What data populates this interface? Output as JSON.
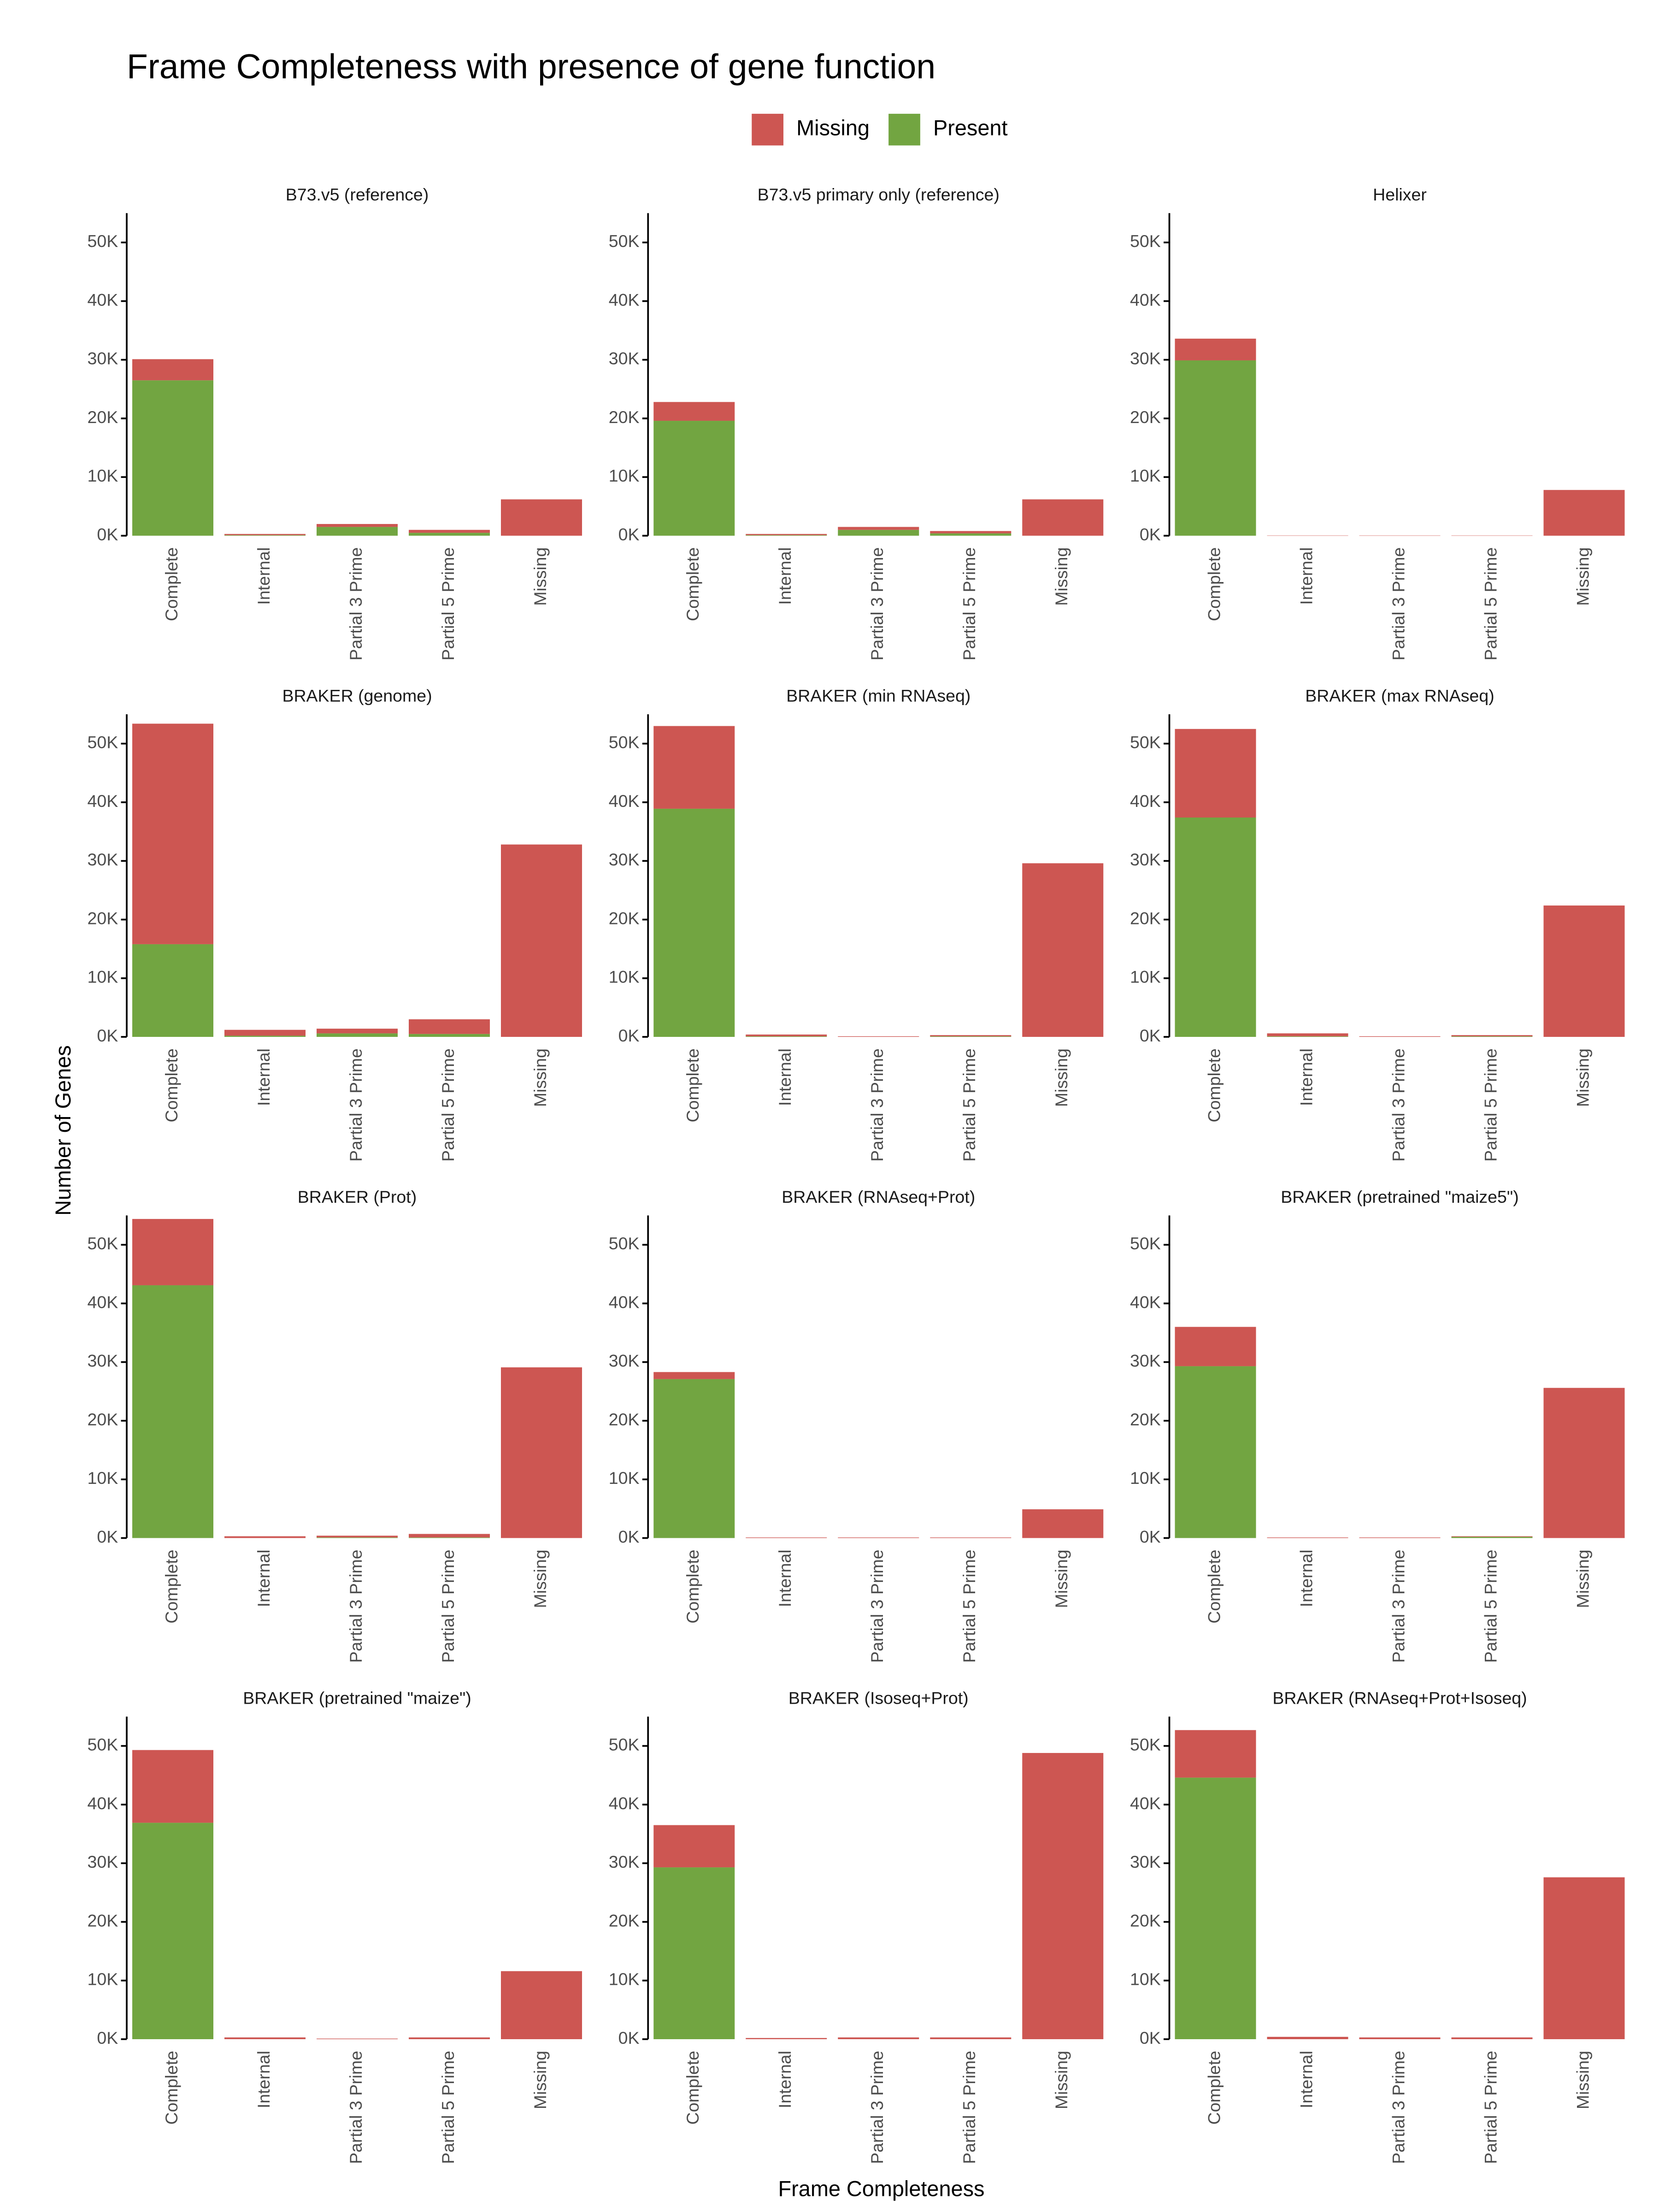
{
  "figure": {
    "title": "Frame Completeness with presence of gene function",
    "xlabel": "Frame Completeness",
    "ylabel": "Number of Genes"
  },
  "chart_data": [
    {
      "type": "bar",
      "stacked": true,
      "title": "B73.v5 (reference)",
      "categories": [
        "Complete",
        "Internal",
        "Partial 3 Prime",
        "Partial 5 Prime",
        "Missing"
      ],
      "series": [
        {
          "name": "Missing",
          "color": "#CD5652",
          "values": [
            3600,
            200,
            500,
            500,
            6200
          ]
        },
        {
          "name": "Present",
          "color": "#72A541",
          "values": [
            26500,
            100,
            1500,
            500,
            0
          ]
        }
      ],
      "ylim": [
        0,
        55000
      ],
      "yticks": [
        {
          "value": 0,
          "label": "0K"
        },
        {
          "value": 10000,
          "label": "10K"
        },
        {
          "value": 20000,
          "label": "20K"
        },
        {
          "value": 30000,
          "label": "30K"
        },
        {
          "value": 40000,
          "label": "40K"
        },
        {
          "value": 50000,
          "label": "50K"
        }
      ]
    },
    {
      "type": "bar",
      "stacked": true,
      "title": "B73.v5 primary only (reference)",
      "categories": [
        "Complete",
        "Internal",
        "Partial 3 Prime",
        "Partial 5 Prime",
        "Missing"
      ],
      "series": [
        {
          "name": "Missing",
          "color": "#CD5652",
          "values": [
            3200,
            200,
            500,
            400,
            6200
          ]
        },
        {
          "name": "Present",
          "color": "#72A541",
          "values": [
            19600,
            100,
            1000,
            400,
            0
          ]
        }
      ],
      "ylim": [
        0,
        55000
      ],
      "yticks": [
        {
          "value": 0,
          "label": "0K"
        },
        {
          "value": 10000,
          "label": "10K"
        },
        {
          "value": 20000,
          "label": "20K"
        },
        {
          "value": 30000,
          "label": "30K"
        },
        {
          "value": 40000,
          "label": "40K"
        },
        {
          "value": 50000,
          "label": "50K"
        }
      ]
    },
    {
      "type": "bar",
      "stacked": true,
      "title": "Helixer",
      "categories": [
        "Complete",
        "Internal",
        "Partial 3 Prime",
        "Partial 5 Prime",
        "Missing"
      ],
      "series": [
        {
          "name": "Missing",
          "color": "#CD5652",
          "values": [
            3700,
            50,
            50,
            50,
            7800
          ]
        },
        {
          "name": "Present",
          "color": "#72A541",
          "values": [
            29900,
            0,
            0,
            0,
            0
          ]
        }
      ],
      "ylim": [
        0,
        55000
      ],
      "yticks": [
        {
          "value": 0,
          "label": "0K"
        },
        {
          "value": 10000,
          "label": "10K"
        },
        {
          "value": 20000,
          "label": "20K"
        },
        {
          "value": 30000,
          "label": "30K"
        },
        {
          "value": 40000,
          "label": "40K"
        },
        {
          "value": 50000,
          "label": "50K"
        }
      ]
    },
    {
      "type": "bar",
      "stacked": true,
      "title": "BRAKER (genome)",
      "categories": [
        "Complete",
        "Internal",
        "Partial 3 Prime",
        "Partial 5 Prime",
        "Missing"
      ],
      "series": [
        {
          "name": "Missing",
          "color": "#CD5652",
          "values": [
            37600,
            1000,
            800,
            2500,
            32800
          ]
        },
        {
          "name": "Present",
          "color": "#72A541",
          "values": [
            15800,
            200,
            600,
            500,
            0
          ]
        }
      ],
      "ylim": [
        0,
        55000
      ],
      "yticks": [
        {
          "value": 0,
          "label": "0K"
        },
        {
          "value": 10000,
          "label": "10K"
        },
        {
          "value": 20000,
          "label": "20K"
        },
        {
          "value": 30000,
          "label": "30K"
        },
        {
          "value": 40000,
          "label": "40K"
        },
        {
          "value": 50000,
          "label": "50K"
        }
      ]
    },
    {
      "type": "bar",
      "stacked": true,
      "title": "BRAKER (min RNAseq)",
      "categories": [
        "Complete",
        "Internal",
        "Partial 3 Prime",
        "Partial 5 Prime",
        "Missing"
      ],
      "series": [
        {
          "name": "Missing",
          "color": "#CD5652",
          "values": [
            14100,
            300,
            100,
            200,
            29600
          ]
        },
        {
          "name": "Present",
          "color": "#72A541",
          "values": [
            38900,
            100,
            0,
            100,
            0
          ]
        }
      ],
      "ylim": [
        0,
        55000
      ],
      "yticks": [
        {
          "value": 0,
          "label": "0K"
        },
        {
          "value": 10000,
          "label": "10K"
        },
        {
          "value": 20000,
          "label": "20K"
        },
        {
          "value": 30000,
          "label": "30K"
        },
        {
          "value": 40000,
          "label": "40K"
        },
        {
          "value": 50000,
          "label": "50K"
        }
      ]
    },
    {
      "type": "bar",
      "stacked": true,
      "title": "BRAKER (max RNAseq)",
      "categories": [
        "Complete",
        "Internal",
        "Partial 3 Prime",
        "Partial 5 Prime",
        "Missing"
      ],
      "series": [
        {
          "name": "Missing",
          "color": "#CD5652",
          "values": [
            15100,
            500,
            100,
            200,
            22400
          ]
        },
        {
          "name": "Present",
          "color": "#72A541",
          "values": [
            37400,
            100,
            0,
            100,
            0
          ]
        }
      ],
      "ylim": [
        0,
        55000
      ],
      "yticks": [
        {
          "value": 0,
          "label": "0K"
        },
        {
          "value": 10000,
          "label": "10K"
        },
        {
          "value": 20000,
          "label": "20K"
        },
        {
          "value": 30000,
          "label": "30K"
        },
        {
          "value": 40000,
          "label": "40K"
        },
        {
          "value": 50000,
          "label": "50K"
        }
      ]
    },
    {
      "type": "bar",
      "stacked": true,
      "title": "BRAKER (Prot)",
      "categories": [
        "Complete",
        "Internal",
        "Partial 3 Prime",
        "Partial 5 Prime",
        "Missing"
      ],
      "series": [
        {
          "name": "Missing",
          "color": "#CD5652",
          "values": [
            11300,
            300,
            300,
            600,
            29100
          ]
        },
        {
          "name": "Present",
          "color": "#72A541",
          "values": [
            43100,
            0,
            100,
            100,
            0
          ]
        }
      ],
      "ylim": [
        0,
        55000
      ],
      "yticks": [
        {
          "value": 0,
          "label": "0K"
        },
        {
          "value": 10000,
          "label": "10K"
        },
        {
          "value": 20000,
          "label": "20K"
        },
        {
          "value": 30000,
          "label": "30K"
        },
        {
          "value": 40000,
          "label": "40K"
        },
        {
          "value": 50000,
          "label": "50K"
        }
      ]
    },
    {
      "type": "bar",
      "stacked": true,
      "title": "BRAKER (RNAseq+Prot)",
      "categories": [
        "Complete",
        "Internal",
        "Partial 3 Prime",
        "Partial 5 Prime",
        "Missing"
      ],
      "series": [
        {
          "name": "Missing",
          "color": "#CD5652",
          "values": [
            1200,
            100,
            100,
            100,
            4900
          ]
        },
        {
          "name": "Present",
          "color": "#72A541",
          "values": [
            27100,
            0,
            0,
            0,
            0
          ]
        }
      ],
      "ylim": [
        0,
        55000
      ],
      "yticks": [
        {
          "value": 0,
          "label": "0K"
        },
        {
          "value": 10000,
          "label": "10K"
        },
        {
          "value": 20000,
          "label": "20K"
        },
        {
          "value": 30000,
          "label": "30K"
        },
        {
          "value": 40000,
          "label": "40K"
        },
        {
          "value": 50000,
          "label": "50K"
        }
      ]
    },
    {
      "type": "bar",
      "stacked": true,
      "title": "BRAKER (pretrained \"maize5\")",
      "categories": [
        "Complete",
        "Internal",
        "Partial 3 Prime",
        "Partial 5 Prime",
        "Missing"
      ],
      "series": [
        {
          "name": "Missing",
          "color": "#CD5652",
          "values": [
            6700,
            100,
            100,
            100,
            25600
          ]
        },
        {
          "name": "Present",
          "color": "#72A541",
          "values": [
            29300,
            0,
            0,
            200,
            0
          ]
        }
      ],
      "ylim": [
        0,
        55000
      ],
      "yticks": [
        {
          "value": 0,
          "label": "0K"
        },
        {
          "value": 10000,
          "label": "10K"
        },
        {
          "value": 20000,
          "label": "20K"
        },
        {
          "value": 30000,
          "label": "30K"
        },
        {
          "value": 40000,
          "label": "40K"
        },
        {
          "value": 50000,
          "label": "50K"
        }
      ]
    },
    {
      "type": "bar",
      "stacked": true,
      "title": "BRAKER (pretrained \"maize\")",
      "categories": [
        "Complete",
        "Internal",
        "Partial 3 Prime",
        "Partial 5 Prime",
        "Missing"
      ],
      "series": [
        {
          "name": "Missing",
          "color": "#CD5652",
          "values": [
            12400,
            300,
            100,
            300,
            11600
          ]
        },
        {
          "name": "Present",
          "color": "#72A541",
          "values": [
            36900,
            0,
            0,
            0,
            0
          ]
        }
      ],
      "ylim": [
        0,
        55000
      ],
      "yticks": [
        {
          "value": 0,
          "label": "0K"
        },
        {
          "value": 10000,
          "label": "10K"
        },
        {
          "value": 20000,
          "label": "20K"
        },
        {
          "value": 30000,
          "label": "30K"
        },
        {
          "value": 40000,
          "label": "40K"
        },
        {
          "value": 50000,
          "label": "50K"
        }
      ]
    },
    {
      "type": "bar",
      "stacked": true,
      "title": "BRAKER (Isoseq+Prot)",
      "categories": [
        "Complete",
        "Internal",
        "Partial 3 Prime",
        "Partial 5 Prime",
        "Missing"
      ],
      "series": [
        {
          "name": "Missing",
          "color": "#CD5652",
          "values": [
            7200,
            200,
            300,
            300,
            48800
          ]
        },
        {
          "name": "Present",
          "color": "#72A541",
          "values": [
            29300,
            0,
            0,
            0,
            0
          ]
        }
      ],
      "ylim": [
        0,
        55000
      ],
      "yticks": [
        {
          "value": 0,
          "label": "0K"
        },
        {
          "value": 10000,
          "label": "10K"
        },
        {
          "value": 20000,
          "label": "20K"
        },
        {
          "value": 30000,
          "label": "30K"
        },
        {
          "value": 40000,
          "label": "40K"
        },
        {
          "value": 50000,
          "label": "50K"
        }
      ]
    },
    {
      "type": "bar",
      "stacked": true,
      "title": "BRAKER (RNAseq+Prot+Isoseq)",
      "categories": [
        "Complete",
        "Internal",
        "Partial 3 Prime",
        "Partial 5 Prime",
        "Missing"
      ],
      "series": [
        {
          "name": "Missing",
          "color": "#CD5652",
          "values": [
            8100,
            400,
            300,
            300,
            27600
          ]
        },
        {
          "name": "Present",
          "color": "#72A541",
          "values": [
            44600,
            0,
            0,
            0,
            0
          ]
        }
      ],
      "ylim": [
        0,
        55000
      ],
      "yticks": [
        {
          "value": 0,
          "label": "0K"
        },
        {
          "value": 10000,
          "label": "10K"
        },
        {
          "value": 20000,
          "label": "20K"
        },
        {
          "value": 30000,
          "label": "30K"
        },
        {
          "value": 40000,
          "label": "40K"
        },
        {
          "value": 50000,
          "label": "50K"
        }
      ]
    }
  ]
}
